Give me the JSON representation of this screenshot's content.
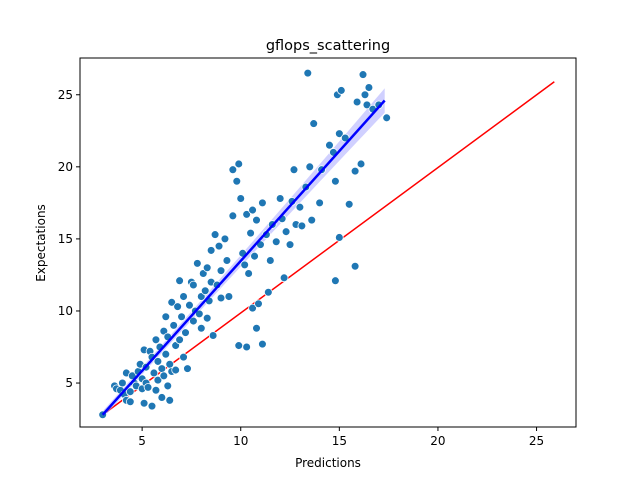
{
  "chart_data": {
    "type": "scatter",
    "title": "gflops_scattering",
    "xlabel": "Predictions",
    "ylabel": "Expectations",
    "xlim": [
      1.85,
      27.0
    ],
    "ylim": [
      1.95,
      27.55
    ],
    "xticks": [
      5,
      10,
      15,
      20,
      25
    ],
    "yticks": [
      5,
      10,
      15,
      20,
      25
    ],
    "grid": false,
    "colors": {
      "points": "#1f77b4",
      "point_edge": "#ffffff",
      "regression": "#0000ff",
      "confidence_band": "#aaaaff",
      "reference": "#ff0000"
    },
    "points": [
      {
        "x": 3.0,
        "y": 2.8
      },
      {
        "x": 3.6,
        "y": 4.8
      },
      {
        "x": 3.7,
        "y": 4.6
      },
      {
        "x": 3.9,
        "y": 4.5
      },
      {
        "x": 4.0,
        "y": 5.0
      },
      {
        "x": 4.1,
        "y": 4.2
      },
      {
        "x": 4.2,
        "y": 3.8
      },
      {
        "x": 4.2,
        "y": 5.7
      },
      {
        "x": 4.4,
        "y": 4.4
      },
      {
        "x": 4.4,
        "y": 3.7
      },
      {
        "x": 4.5,
        "y": 5.5
      },
      {
        "x": 4.6,
        "y": 5.0
      },
      {
        "x": 4.7,
        "y": 4.8
      },
      {
        "x": 4.8,
        "y": 5.8
      },
      {
        "x": 4.9,
        "y": 6.3
      },
      {
        "x": 5.0,
        "y": 5.3
      },
      {
        "x": 5.0,
        "y": 4.6
      },
      {
        "x": 5.1,
        "y": 7.3
      },
      {
        "x": 5.1,
        "y": 3.6
      },
      {
        "x": 5.2,
        "y": 6.1
      },
      {
        "x": 5.2,
        "y": 5.0
      },
      {
        "x": 5.3,
        "y": 4.7
      },
      {
        "x": 5.4,
        "y": 7.2
      },
      {
        "x": 5.5,
        "y": 3.4
      },
      {
        "x": 5.5,
        "y": 6.8
      },
      {
        "x": 5.6,
        "y": 5.7
      },
      {
        "x": 5.7,
        "y": 8.0
      },
      {
        "x": 5.7,
        "y": 4.5
      },
      {
        "x": 5.8,
        "y": 5.2
      },
      {
        "x": 5.8,
        "y": 6.5
      },
      {
        "x": 5.9,
        "y": 7.5
      },
      {
        "x": 6.0,
        "y": 4.0
      },
      {
        "x": 6.0,
        "y": 6.0
      },
      {
        "x": 6.1,
        "y": 8.6
      },
      {
        "x": 6.1,
        "y": 5.5
      },
      {
        "x": 6.2,
        "y": 9.6
      },
      {
        "x": 6.2,
        "y": 7.0
      },
      {
        "x": 6.3,
        "y": 4.8
      },
      {
        "x": 6.3,
        "y": 8.2
      },
      {
        "x": 6.4,
        "y": 3.8
      },
      {
        "x": 6.4,
        "y": 6.3
      },
      {
        "x": 6.5,
        "y": 10.6
      },
      {
        "x": 6.5,
        "y": 5.8
      },
      {
        "x": 6.6,
        "y": 9.0
      },
      {
        "x": 6.7,
        "y": 7.6
      },
      {
        "x": 6.7,
        "y": 5.9
      },
      {
        "x": 6.8,
        "y": 10.3
      },
      {
        "x": 6.9,
        "y": 8.0
      },
      {
        "x": 6.9,
        "y": 12.1
      },
      {
        "x": 7.0,
        "y": 9.6
      },
      {
        "x": 7.1,
        "y": 6.8
      },
      {
        "x": 7.1,
        "y": 11.0
      },
      {
        "x": 7.2,
        "y": 8.5
      },
      {
        "x": 7.3,
        "y": 6.0
      },
      {
        "x": 7.4,
        "y": 10.4
      },
      {
        "x": 7.5,
        "y": 12.0
      },
      {
        "x": 7.6,
        "y": 9.3
      },
      {
        "x": 7.6,
        "y": 11.8
      },
      {
        "x": 7.7,
        "y": 10.0
      },
      {
        "x": 7.8,
        "y": 13.3
      },
      {
        "x": 7.9,
        "y": 9.8
      },
      {
        "x": 8.0,
        "y": 11.0
      },
      {
        "x": 8.0,
        "y": 8.8
      },
      {
        "x": 8.1,
        "y": 12.6
      },
      {
        "x": 8.2,
        "y": 11.4
      },
      {
        "x": 8.3,
        "y": 13.0
      },
      {
        "x": 8.3,
        "y": 9.5
      },
      {
        "x": 8.4,
        "y": 10.7
      },
      {
        "x": 8.5,
        "y": 14.2
      },
      {
        "x": 8.5,
        "y": 12.0
      },
      {
        "x": 8.6,
        "y": 8.3
      },
      {
        "x": 8.7,
        "y": 15.3
      },
      {
        "x": 8.8,
        "y": 11.8
      },
      {
        "x": 8.9,
        "y": 14.5
      },
      {
        "x": 9.0,
        "y": 10.9
      },
      {
        "x": 9.0,
        "y": 12.8
      },
      {
        "x": 9.2,
        "y": 15.0
      },
      {
        "x": 9.3,
        "y": 13.5
      },
      {
        "x": 9.4,
        "y": 11.0
      },
      {
        "x": 9.6,
        "y": 16.6
      },
      {
        "x": 9.6,
        "y": 19.8
      },
      {
        "x": 9.8,
        "y": 19.0
      },
      {
        "x": 9.9,
        "y": 20.2
      },
      {
        "x": 9.9,
        "y": 7.6
      },
      {
        "x": 10.0,
        "y": 17.8
      },
      {
        "x": 10.1,
        "y": 14.0
      },
      {
        "x": 10.2,
        "y": 13.2
      },
      {
        "x": 10.3,
        "y": 16.7
      },
      {
        "x": 10.3,
        "y": 7.5
      },
      {
        "x": 10.4,
        "y": 12.6
      },
      {
        "x": 10.5,
        "y": 15.4
      },
      {
        "x": 10.6,
        "y": 10.2
      },
      {
        "x": 10.6,
        "y": 17.0
      },
      {
        "x": 10.7,
        "y": 13.8
      },
      {
        "x": 10.8,
        "y": 16.3
      },
      {
        "x": 10.8,
        "y": 8.8
      },
      {
        "x": 10.9,
        "y": 10.5
      },
      {
        "x": 11.0,
        "y": 14.6
      },
      {
        "x": 11.1,
        "y": 7.7
      },
      {
        "x": 11.1,
        "y": 17.5
      },
      {
        "x": 11.3,
        "y": 15.3
      },
      {
        "x": 11.4,
        "y": 11.3
      },
      {
        "x": 11.5,
        "y": 13.5
      },
      {
        "x": 11.6,
        "y": 16.0
      },
      {
        "x": 11.8,
        "y": 14.8
      },
      {
        "x": 12.0,
        "y": 17.8
      },
      {
        "x": 12.1,
        "y": 16.4
      },
      {
        "x": 12.2,
        "y": 12.3
      },
      {
        "x": 12.3,
        "y": 15.5
      },
      {
        "x": 12.5,
        "y": 14.6
      },
      {
        "x": 12.6,
        "y": 17.6
      },
      {
        "x": 12.7,
        "y": 19.8
      },
      {
        "x": 12.8,
        "y": 16.0
      },
      {
        "x": 13.0,
        "y": 17.2
      },
      {
        "x": 13.1,
        "y": 15.9
      },
      {
        "x": 13.3,
        "y": 18.6
      },
      {
        "x": 13.4,
        "y": 26.5
      },
      {
        "x": 13.5,
        "y": 20.0
      },
      {
        "x": 13.6,
        "y": 16.3
      },
      {
        "x": 13.7,
        "y": 23.0
      },
      {
        "x": 14.0,
        "y": 17.5
      },
      {
        "x": 14.1,
        "y": 19.8
      },
      {
        "x": 14.5,
        "y": 21.5
      },
      {
        "x": 14.7,
        "y": 21.0
      },
      {
        "x": 14.8,
        "y": 12.1
      },
      {
        "x": 14.8,
        "y": 19.0
      },
      {
        "x": 14.9,
        "y": 25.0
      },
      {
        "x": 15.0,
        "y": 22.3
      },
      {
        "x": 15.0,
        "y": 15.1
      },
      {
        "x": 15.1,
        "y": 25.3
      },
      {
        "x": 15.3,
        "y": 22.0
      },
      {
        "x": 15.5,
        "y": 17.4
      },
      {
        "x": 15.8,
        "y": 13.1
      },
      {
        "x": 15.8,
        "y": 19.7
      },
      {
        "x": 15.9,
        "y": 24.5
      },
      {
        "x": 16.1,
        "y": 20.2
      },
      {
        "x": 16.2,
        "y": 26.4
      },
      {
        "x": 16.3,
        "y": 25.0
      },
      {
        "x": 16.4,
        "y": 24.3
      },
      {
        "x": 16.5,
        "y": 25.5
      },
      {
        "x": 16.7,
        "y": 24.0
      },
      {
        "x": 17.0,
        "y": 24.3
      },
      {
        "x": 17.4,
        "y": 23.4
      }
    ],
    "regression": {
      "x": [
        3.0,
        17.3
      ],
      "y": [
        2.8,
        24.6
      ],
      "band_halfwidth_start": 0.25,
      "band_halfwidth_end": 0.85
    },
    "reference_line": {
      "x": [
        3.0,
        25.9
      ],
      "y": [
        2.8,
        25.9
      ]
    }
  }
}
